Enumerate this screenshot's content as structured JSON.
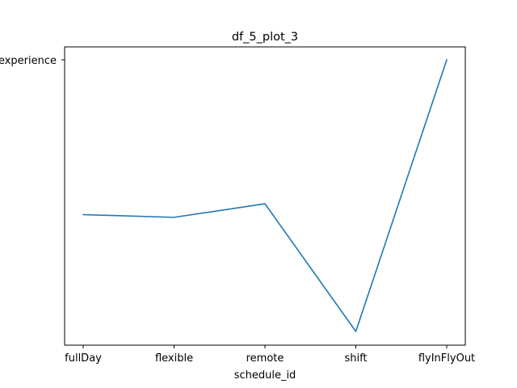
{
  "chart_data": {
    "type": "line",
    "title": "df_5_plot_3",
    "xlabel": "schedule_id",
    "ylabel": "",
    "categories": [
      "fullDay",
      "flexible",
      "remote",
      "shift",
      "flyInFlyOut"
    ],
    "y_tick_label": "experience",
    "y_tick_value": 1.0,
    "ylim": [
      -0.05,
      1.0
    ],
    "grid": false,
    "series": [
      {
        "values": [
          0.43,
          0.42,
          0.47,
          0.0,
          1.0
        ]
      }
    ],
    "colors": {
      "line": "#1f77b4",
      "axes": "#000000",
      "background": "#ffffff"
    }
  }
}
